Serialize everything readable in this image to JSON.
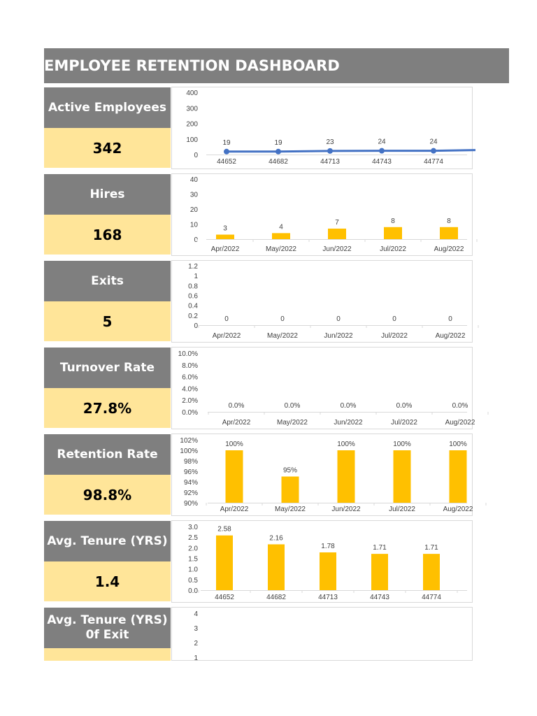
{
  "dashboard": {
    "title": "EMPLOYEE RETENTION DASHBOARD"
  },
  "kpis": [
    {
      "label": "Active Employees",
      "value": "342"
    },
    {
      "label": "Hires",
      "value": "168"
    },
    {
      "label": "Exits",
      "value": "5"
    },
    {
      "label": "Turnover Rate",
      "value": "27.8%"
    },
    {
      "label": "Retention Rate",
      "value": "98.8%"
    },
    {
      "label": "Avg. Tenure (YRS)",
      "value": "1.4"
    },
    {
      "label": "Avg. Tenure (YRS) 0f Exit",
      "value": ""
    }
  ],
  "colors": {
    "header_gray": "#7f7f7f",
    "value_yellow": "#ffe599",
    "bar_gold": "#ffc000",
    "line_blue": "#4472c4"
  },
  "chart_data": [
    {
      "type": "line",
      "x": [
        "44652",
        "44682",
        "44713",
        "44743",
        "44774"
      ],
      "values": [
        19,
        19,
        23,
        24,
        24
      ],
      "labels": [
        "19",
        "19",
        "23",
        "24",
        "24"
      ],
      "yticks": [
        "400",
        "300",
        "200",
        "100",
        "0"
      ],
      "ylim": [
        0,
        400
      ]
    },
    {
      "type": "bar",
      "categories": [
        "Apr/2022",
        "May/2022",
        "Jun/2022",
        "Jul/2022",
        "Aug/2022"
      ],
      "values": [
        3,
        4,
        7,
        8,
        8
      ],
      "labels": [
        "3",
        "4",
        "7",
        "8",
        "8"
      ],
      "yticks": [
        "40",
        "30",
        "20",
        "10",
        "0"
      ],
      "ylim": [
        0,
        40
      ]
    },
    {
      "type": "bar",
      "categories": [
        "Apr/2022",
        "May/2022",
        "Jun/2022",
        "Jul/2022",
        "Aug/2022"
      ],
      "values": [
        0,
        0,
        0,
        0,
        0
      ],
      "labels": [
        "0",
        "0",
        "0",
        "0",
        "0"
      ],
      "yticks": [
        "1.2",
        "1",
        "0.8",
        "0.6",
        "0.4",
        "0.2",
        "0"
      ],
      "ylim": [
        0,
        1.2
      ]
    },
    {
      "type": "bar",
      "categories": [
        "Apr/2022",
        "May/2022",
        "Jun/2022",
        "Jul/2022",
        "Aug/2022"
      ],
      "values": [
        0,
        0,
        0,
        0,
        0
      ],
      "labels": [
        "0.0%",
        "0.0%",
        "0.0%",
        "0.0%",
        "0.0%"
      ],
      "yticks": [
        "10.0%",
        "8.0%",
        "6.0%",
        "4.0%",
        "2.0%",
        "0.0%"
      ],
      "ylim": [
        0,
        10
      ]
    },
    {
      "type": "bar",
      "categories": [
        "Apr/2022",
        "May/2022",
        "Jun/2022",
        "Jul/2022",
        "Aug/2022"
      ],
      "values": [
        100,
        95,
        100,
        100,
        100
      ],
      "labels": [
        "100%",
        "95%",
        "100%",
        "100%",
        "100%"
      ],
      "yticks": [
        "102%",
        "100%",
        "98%",
        "96%",
        "94%",
        "92%",
        "90%"
      ],
      "ylim": [
        90,
        102
      ]
    },
    {
      "type": "bar",
      "categories": [
        "44652",
        "44682",
        "44713",
        "44743",
        "44774"
      ],
      "values": [
        2.58,
        2.16,
        1.78,
        1.71,
        1.71
      ],
      "labels": [
        "2.58",
        "2.16",
        "1.78",
        "1.71",
        "1.71"
      ],
      "yticks": [
        "3.0",
        "2.5",
        "2.0",
        "1.5",
        "1.0",
        "0.5",
        "0.0"
      ],
      "ylim": [
        0,
        3
      ]
    },
    {
      "type": "bar",
      "categories": [],
      "values": [],
      "labels": [],
      "yticks": [
        "4",
        "3",
        "2",
        "1"
      ],
      "ylim": [
        0,
        4
      ]
    }
  ]
}
